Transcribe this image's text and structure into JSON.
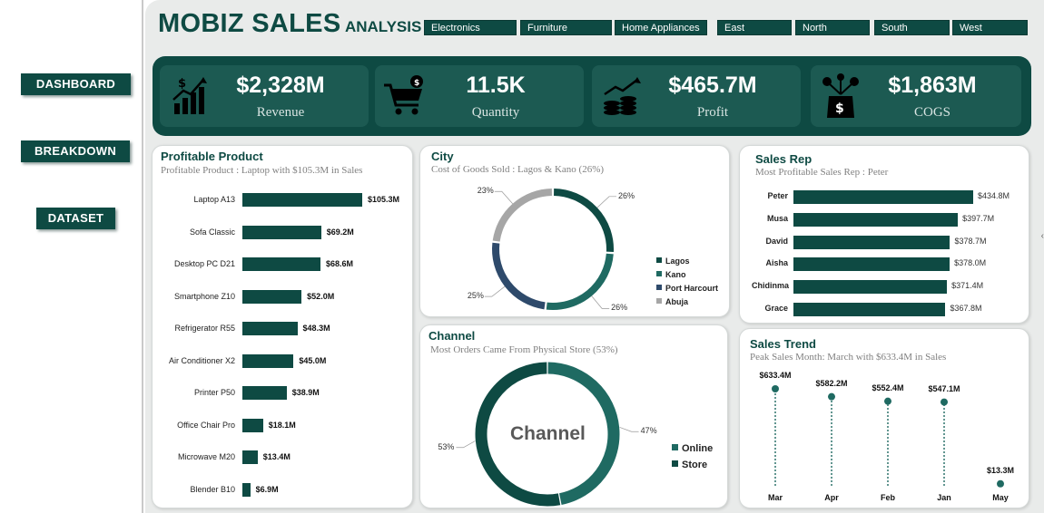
{
  "title": {
    "main": "MOBIZ SALES",
    "sub": "ANALYSIS"
  },
  "nav": [
    "DASHBOARD",
    "BREAKDOWN",
    "DATASET"
  ],
  "slicers": [
    "Electronics",
    "Furniture",
    "Home Appliances",
    "East",
    "North",
    "South",
    "West"
  ],
  "kpis": [
    {
      "value": "$2,328M",
      "label": "Revenue",
      "icon": "revenue-chart-icon"
    },
    {
      "value": "11.5K",
      "label": "Quantity",
      "icon": "shopping-cart-icon"
    },
    {
      "value": "$465.7M",
      "label": "Profit",
      "icon": "coins-profit-icon"
    },
    {
      "value": "$1,863M",
      "label": "COGS",
      "icon": "money-box-icon"
    }
  ],
  "product": {
    "title": "Profitable Product",
    "subtitle": "Profitable Product : Laptop  with $105.3M in Sales"
  },
  "city": {
    "title": "City",
    "subtitle": "Cost of Goods Sold : Lagos & Kano (26%)"
  },
  "channel": {
    "title": "Channel",
    "subtitle": "Most Orders Came From Physical Store (53%)",
    "center": "Channel"
  },
  "salesrep": {
    "title": "Sales Rep",
    "subtitle": "Most Profitable Sales Rep : Peter"
  },
  "trend": {
    "title": "Sales Trend",
    "subtitle": "Peak Sales Month: March with $633.4M in Sales"
  },
  "right_edge": "‹",
  "chart_data": [
    {
      "type": "bar",
      "orientation": "horizontal",
      "title": "Profitable Product",
      "categories": [
        "Laptop A13",
        "Sofa Classic",
        "Desktop PC D21",
        "Smartphone Z10",
        "Refrigerator R55",
        "Air Conditioner X2",
        "Printer P50",
        "Office Chair Pro",
        "Microwave M20",
        "Blender B10"
      ],
      "values": [
        105.3,
        69.2,
        68.6,
        52.0,
        48.3,
        45.0,
        38.9,
        18.1,
        13.4,
        6.9
      ],
      "labels": [
        "$105.3M",
        "$69.2M",
        "$68.6M",
        "$52.0M",
        "$48.3M",
        "$45.0M",
        "$38.9M",
        "$18.1M",
        "$13.4M",
        "$6.9M"
      ],
      "unit": "$M"
    },
    {
      "type": "pie",
      "donut": true,
      "title": "City",
      "categories": [
        "Lagos",
        "Kano",
        "Port Harcourt",
        "Abuja"
      ],
      "values": [
        26,
        26,
        25,
        23
      ],
      "labels": [
        "26%",
        "26%",
        "25%",
        "23%"
      ],
      "colors": [
        "#0e4a43",
        "#1f6a62",
        "#2e4a6b",
        "#a6a6a6"
      ]
    },
    {
      "type": "pie",
      "donut": true,
      "title": "Channel",
      "categories": [
        "Online",
        "Store"
      ],
      "values": [
        47,
        53
      ],
      "labels": [
        "47%",
        "53%"
      ],
      "colors": [
        "#1f6a62",
        "#0e4a43"
      ]
    },
    {
      "type": "bar",
      "orientation": "horizontal",
      "title": "Sales Rep",
      "categories": [
        "Peter",
        "Musa",
        "David",
        "Aisha",
        "Chidinma",
        "Grace"
      ],
      "values": [
        434.8,
        397.7,
        378.7,
        378.0,
        371.4,
        367.8
      ],
      "labels": [
        "$434.8M",
        "$397.7M",
        "$378.7M",
        "$378.0M",
        "$371.4M",
        "$367.8M"
      ],
      "unit": "$M"
    },
    {
      "type": "scatter",
      "style": "lollipop",
      "title": "Sales Trend",
      "categories": [
        "Mar",
        "Apr",
        "Feb",
        "Jan",
        "May"
      ],
      "values": [
        633.4,
        582.2,
        552.4,
        547.1,
        13.3
      ],
      "labels": [
        "$633.4M",
        "$582.2M",
        "$552.4M",
        "$547.1M",
        "$13.3M"
      ],
      "unit": "$M"
    }
  ]
}
